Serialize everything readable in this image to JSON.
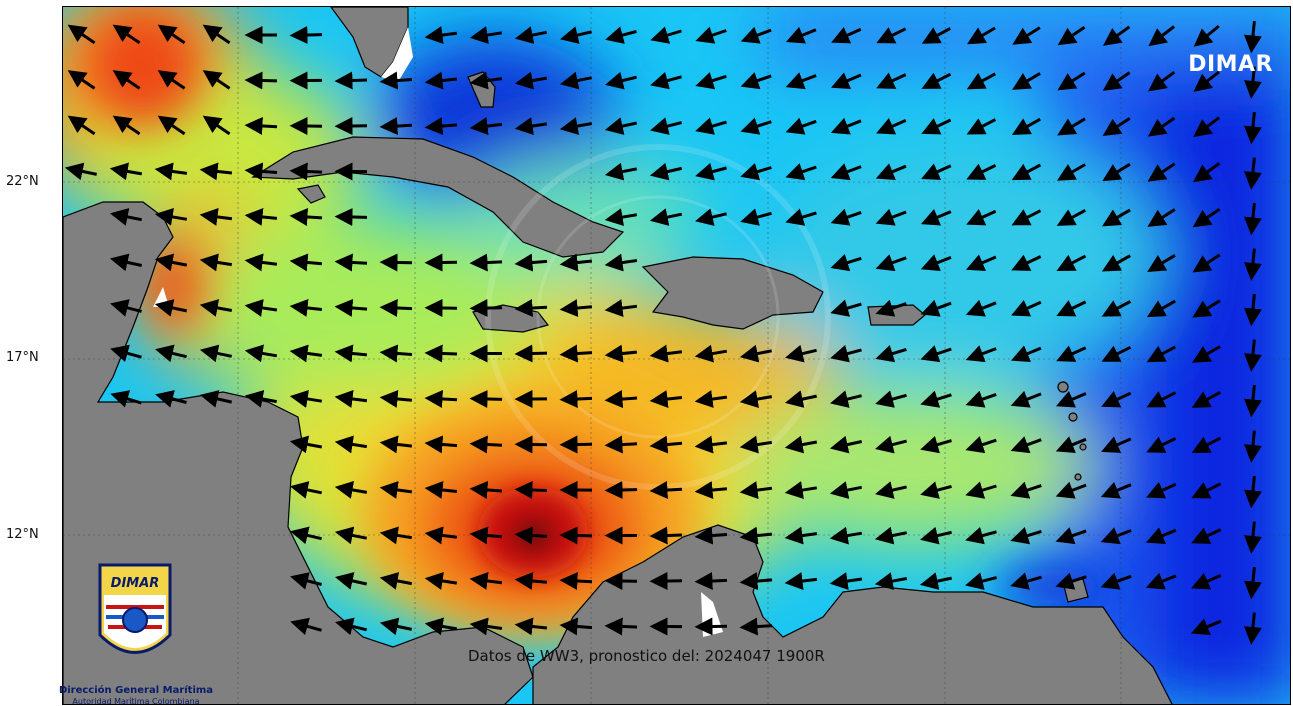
{
  "map": {
    "latitude_labels": [
      {
        "text": "22°N",
        "lat": 22
      },
      {
        "text": "17°N",
        "lat": 17
      },
      {
        "text": "12°N",
        "lat": 12
      }
    ],
    "brand_label": "DIMAR",
    "caption": "Datos de WW3, pronostico del: 2024047 1900R",
    "extent": {
      "lon_min": -89,
      "lon_max": -56.5,
      "lat_min": 7.2,
      "lat_max": 26.6
    },
    "colors": {
      "land": "#808080",
      "coast": "#000000",
      "low": "#0018c8",
      "mid": "#19d3ff",
      "high": "#ffd000",
      "peak": "#c80000",
      "arrow": "#000000"
    },
    "arrow_direction": "westward (easterly trade wind/swell)"
  },
  "logo": {
    "emblem_text": "DIMAR",
    "title": "Dirección General Marítima",
    "subtitle": "Autoridad Marítima Colombiana"
  }
}
